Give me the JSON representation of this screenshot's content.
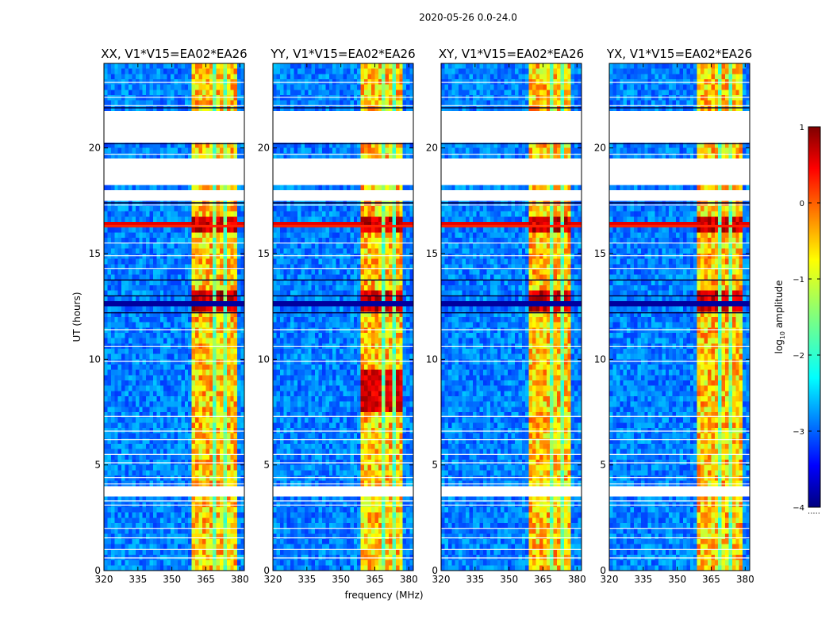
{
  "chart_data": {
    "type": "heatmap",
    "suptitle": "2020-05-26 0.0-24.0",
    "xlabel": "frequency (MHz)",
    "ylabel": "UT (hours)",
    "xlim": [
      320,
      382
    ],
    "ylim": [
      0,
      24
    ],
    "xticks": [
      320,
      335,
      350,
      365,
      380
    ],
    "yticks": [
      0,
      5,
      10,
      15,
      20
    ],
    "panels": [
      {
        "title": "XX, V1*V15=EA02*EA26",
        "strong_band_mhz": [
          359,
          379
        ]
      },
      {
        "title": "YY, V1*V15=EA02*EA26",
        "strong_band_mhz": [
          359,
          378
        ]
      },
      {
        "title": "XY, V1*V15=EA02*EA26",
        "strong_band_mhz": [
          359,
          378
        ]
      },
      {
        "title": "YX, V1*V15=EA02*EA26",
        "strong_band_mhz": [
          359,
          379
        ]
      }
    ],
    "flagged_ut_hours": [
      [
        3.6,
        3.9
      ],
      [
        17.6,
        18.0
      ],
      [
        18.3,
        19.4
      ],
      [
        20.3,
        21.7
      ]
    ],
    "dark_ut_hours": [
      [
        11.9,
        12.1
      ],
      [
        12.4,
        12.7
      ],
      [
        13.4,
        13.6
      ],
      [
        14.0,
        14.1
      ]
    ],
    "bright_event_ut_hours": [
      16.2,
      16.4
    ],
    "colorbar": {
      "label": "log",
      "label_sub": "10",
      "label_rest": " amplitude",
      "range": [
        -4,
        1
      ],
      "ticks": [
        "1",
        "0",
        "−1",
        "−2",
        "−3",
        "−4"
      ],
      "footer": "....."
    }
  }
}
